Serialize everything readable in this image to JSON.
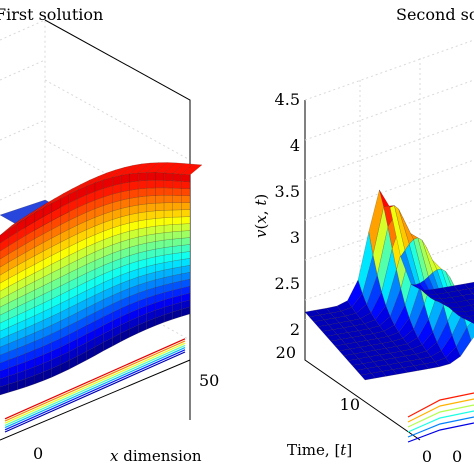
{
  "chart_data": [
    {
      "type": "surface",
      "title": "First solution",
      "xlabel": "x dimension",
      "x_ticks": [
        "0",
        "50"
      ],
      "ylabel": "",
      "zlabel": "",
      "colormap": "jet",
      "grid": true
    },
    {
      "type": "surface",
      "title": "Second solution",
      "zlabel": "v(x, t)",
      "z_ticks": [
        "2",
        "2.5",
        "3",
        "3.5",
        "4",
        "4.5"
      ],
      "zlim": [
        2,
        4.5
      ],
      "ylabel": "Time, [t]",
      "y_ticks": [
        "20",
        "10",
        "0"
      ],
      "ylim": [
        0,
        20
      ],
      "x_ticks": [
        "0"
      ],
      "colormap": "jet",
      "grid": true
    }
  ]
}
